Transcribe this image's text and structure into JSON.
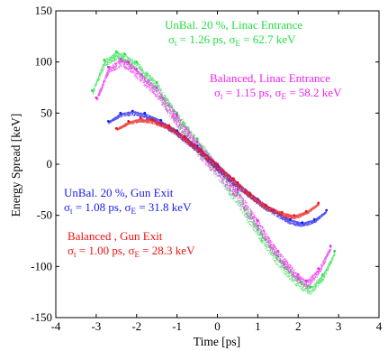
{
  "chart_data": {
    "type": "scatter",
    "title": "",
    "xlabel": "Time [ps]",
    "ylabel": "Energy Spread [keV]",
    "xlim": [
      -4,
      4
    ],
    "ylim": [
      -150,
      150
    ],
    "xticks": [
      -4,
      -3,
      -2,
      -1,
      0,
      1,
      2,
      3,
      4
    ],
    "yticks": [
      -150,
      -100,
      -50,
      0,
      50,
      100,
      150
    ],
    "xtick_labels": [
      "-4",
      "-3",
      "-2",
      "-1",
      "0",
      "1",
      "2",
      "3",
      "4"
    ],
    "ytick_labels": [
      "-150",
      "-100",
      "-50",
      "0",
      "50",
      "100",
      "150"
    ],
    "grid": false,
    "series": [
      {
        "name_line1": "UnBal. 20 %, Linac Entrance",
        "sigma_t": "1.26 ps",
        "sigma_e": "62.7 keV",
        "color": "#22dd44",
        "x": [
          -3.1,
          -2.8,
          -2.5,
          -2.3,
          -2.0,
          -1.5,
          -1.0,
          -0.5,
          0.0,
          0.5,
          1.0,
          1.5,
          2.0,
          2.3,
          2.6,
          2.9
        ],
        "y": [
          72,
          102,
          110,
          108,
          100,
          80,
          50,
          25,
          0,
          -28,
          -60,
          -90,
          -112,
          -120,
          -108,
          -85
        ]
      },
      {
        "name_line1": "Balanced, Linac Entrance",
        "sigma_t": "1.15 ps",
        "sigma_e": "58.2 keV",
        "color": "#ee22ee",
        "x": [
          -3.0,
          -2.7,
          -2.4,
          -2.2,
          -2.0,
          -1.5,
          -1.0,
          -0.5,
          0.0,
          0.5,
          1.0,
          1.5,
          2.0,
          2.2,
          2.5,
          2.8
        ],
        "y": [
          65,
          95,
          103,
          100,
          93,
          75,
          48,
          22,
          0,
          -25,
          -55,
          -85,
          -108,
          -114,
          -102,
          -80
        ]
      },
      {
        "name_line1": "UnBal. 20 %, Gun Exit",
        "sigma_t": "1.08 ps",
        "sigma_e": "31.8 keV",
        "color": "#1a1aee",
        "x": [
          -2.7,
          -2.4,
          -2.1,
          -1.8,
          -1.4,
          -1.0,
          -0.5,
          0.0,
          0.5,
          1.0,
          1.4,
          1.8,
          2.1,
          2.4,
          2.7
        ],
        "y": [
          42,
          50,
          52,
          50,
          43,
          33,
          18,
          0,
          -18,
          -34,
          -45,
          -54,
          -57,
          -54,
          -45
        ]
      },
      {
        "name_line1": "Balanced , Gun Exit",
        "sigma_t": "1.00 ps",
        "sigma_e": "28.3 keV",
        "color": "#ee1111",
        "x": [
          -2.5,
          -2.2,
          -1.9,
          -1.6,
          -1.2,
          -0.8,
          -0.4,
          0.0,
          0.4,
          0.8,
          1.2,
          1.6,
          1.9,
          2.2,
          2.5
        ],
        "y": [
          35,
          42,
          45,
          44,
          38,
          27,
          14,
          0,
          -14,
          -28,
          -40,
          -47,
          -50,
          -46,
          -38
        ]
      }
    ]
  }
}
